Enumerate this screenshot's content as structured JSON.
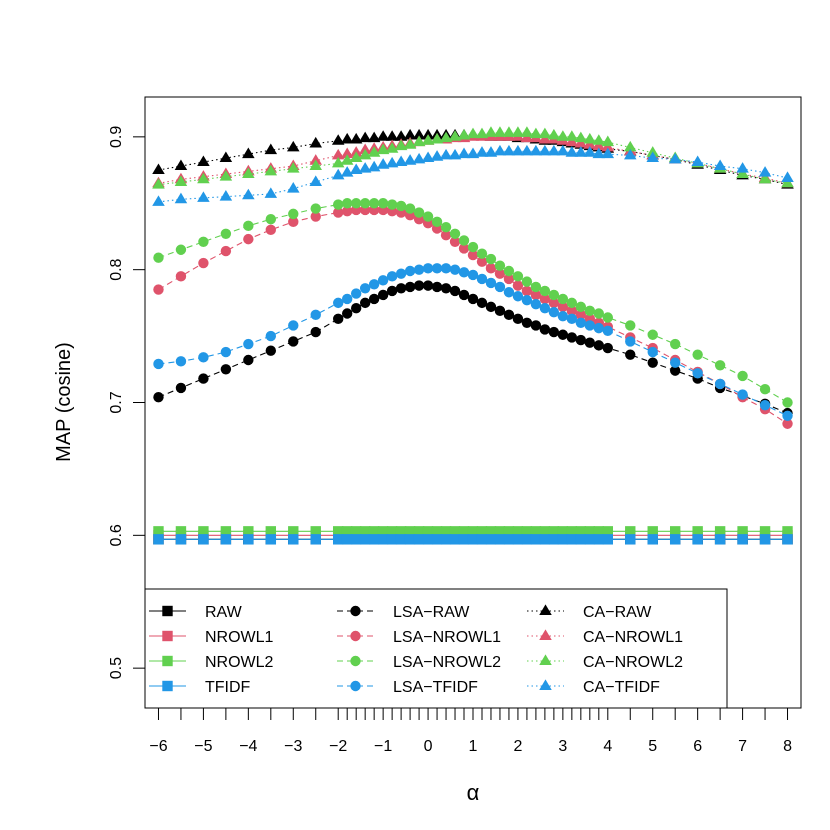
{
  "chart_data": {
    "type": "line",
    "title": "",
    "xlabel": "α",
    "ylabel": "MAP (cosine)",
    "xlim": [
      -6.3,
      8.3
    ],
    "ylim": [
      0.47,
      0.93
    ],
    "x_ticks": [
      -6,
      -5,
      -4,
      -3,
      -2,
      -1,
      0,
      1,
      2,
      3,
      4,
      5,
      6,
      7,
      8
    ],
    "x_tick_labels": [
      "-6",
      "-5",
      "-4",
      "-3",
      "-2",
      "-1",
      "0",
      "1",
      "2",
      "3",
      "4",
      "5",
      "6",
      "7",
      "8"
    ],
    "y_ticks": [
      0.5,
      0.6,
      0.7,
      0.8,
      0.9
    ],
    "y_tick_labels": [
      "0.5",
      "0.6",
      "0.7",
      "0.8",
      "0.9"
    ],
    "grid": false,
    "legend_position": "bottom-left",
    "colors": {
      "black": "#000000",
      "red": "#DF536B",
      "green": "#61D04F",
      "blue": "#2297E6"
    },
    "x": [
      -6,
      -5.5,
      -5,
      -4.5,
      -4,
      -3.5,
      -3,
      -2.5,
      -2,
      -1.8,
      -1.6,
      -1.4,
      -1.2,
      -1,
      -0.8,
      -0.6,
      -0.4,
      -0.2,
      0,
      0.2,
      0.4,
      0.6,
      0.8,
      1,
      1.2,
      1.4,
      1.6,
      1.8,
      2,
      2.2,
      2.4,
      2.6,
      2.8,
      3,
      3.2,
      3.4,
      3.6,
      3.8,
      4,
      4.5,
      5,
      5.5,
      6,
      6.5,
      7,
      7.5,
      8
    ],
    "series": [
      {
        "name": "RAW",
        "color": "#000000",
        "line": "solid",
        "marker": "square",
        "constant": 0.597
      },
      {
        "name": "NROWL1",
        "color": "#DF536B",
        "line": "solid",
        "marker": "square",
        "constant": 0.6
      },
      {
        "name": "NROWL2",
        "color": "#61D04F",
        "line": "solid",
        "marker": "square",
        "constant": 0.603
      },
      {
        "name": "TFIDF",
        "color": "#2297E6",
        "line": "solid",
        "marker": "square",
        "constant": 0.597
      },
      {
        "name": "LSA−RAW",
        "color": "#000000",
        "line": "dashed",
        "marker": "circle",
        "values": [
          0.704,
          0.711,
          0.718,
          0.725,
          0.732,
          0.739,
          0.746,
          0.753,
          0.763,
          0.767,
          0.771,
          0.775,
          0.778,
          0.781,
          0.784,
          0.786,
          0.787,
          0.788,
          0.788,
          0.787,
          0.786,
          0.784,
          0.781,
          0.778,
          0.775,
          0.772,
          0.769,
          0.766,
          0.763,
          0.76,
          0.758,
          0.755,
          0.753,
          0.751,
          0.749,
          0.747,
          0.745,
          0.743,
          0.741,
          0.736,
          0.73,
          0.724,
          0.718,
          0.711,
          0.705,
          0.699,
          0.692
        ]
      },
      {
        "name": "LSA−NROWL1",
        "color": "#DF536B",
        "line": "dashed",
        "marker": "circle",
        "values": [
          0.785,
          0.795,
          0.805,
          0.814,
          0.823,
          0.83,
          0.836,
          0.84,
          0.843,
          0.844,
          0.845,
          0.845,
          0.845,
          0.845,
          0.844,
          0.843,
          0.841,
          0.838,
          0.835,
          0.831,
          0.826,
          0.821,
          0.816,
          0.811,
          0.806,
          0.801,
          0.797,
          0.793,
          0.788,
          0.784,
          0.781,
          0.778,
          0.775,
          0.772,
          0.769,
          0.766,
          0.763,
          0.76,
          0.757,
          0.749,
          0.741,
          0.732,
          0.723,
          0.714,
          0.704,
          0.695,
          0.684
        ]
      },
      {
        "name": "LSA−NROWL2",
        "color": "#61D04F",
        "line": "dashed",
        "marker": "circle",
        "values": [
          0.809,
          0.815,
          0.821,
          0.827,
          0.833,
          0.838,
          0.842,
          0.846,
          0.849,
          0.85,
          0.85,
          0.85,
          0.85,
          0.85,
          0.849,
          0.848,
          0.846,
          0.843,
          0.84,
          0.836,
          0.832,
          0.827,
          0.822,
          0.817,
          0.812,
          0.808,
          0.803,
          0.799,
          0.795,
          0.791,
          0.787,
          0.784,
          0.781,
          0.778,
          0.775,
          0.772,
          0.769,
          0.767,
          0.764,
          0.758,
          0.751,
          0.744,
          0.736,
          0.728,
          0.72,
          0.71,
          0.7
        ]
      },
      {
        "name": "LSA−TFIDF",
        "color": "#2297E6",
        "line": "dashed",
        "marker": "circle",
        "values": [
          0.729,
          0.731,
          0.734,
          0.738,
          0.744,
          0.75,
          0.758,
          0.766,
          0.775,
          0.778,
          0.782,
          0.786,
          0.789,
          0.792,
          0.795,
          0.797,
          0.799,
          0.8,
          0.801,
          0.801,
          0.801,
          0.8,
          0.798,
          0.796,
          0.793,
          0.79,
          0.787,
          0.783,
          0.78,
          0.777,
          0.774,
          0.771,
          0.768,
          0.765,
          0.763,
          0.76,
          0.758,
          0.756,
          0.754,
          0.746,
          0.738,
          0.73,
          0.722,
          0.714,
          0.706,
          0.698,
          0.69
        ]
      },
      {
        "name": "CA−RAW",
        "color": "#000000",
        "line": "dotted",
        "marker": "triangle",
        "values": [
          0.875,
          0.878,
          0.881,
          0.884,
          0.887,
          0.89,
          0.892,
          0.895,
          0.897,
          0.898,
          0.898,
          0.899,
          0.899,
          0.9,
          0.9,
          0.9,
          0.901,
          0.901,
          0.901,
          0.901,
          0.901,
          0.901,
          0.901,
          0.901,
          0.901,
          0.9,
          0.9,
          0.9,
          0.899,
          0.899,
          0.898,
          0.897,
          0.897,
          0.896,
          0.895,
          0.894,
          0.893,
          0.892,
          0.891,
          0.889,
          0.886,
          0.883,
          0.879,
          0.875,
          0.871,
          0.868,
          0.864
        ]
      },
      {
        "name": "CA−NROWL1",
        "color": "#DF536B",
        "line": "dotted",
        "marker": "triangle",
        "values": [
          0.865,
          0.868,
          0.87,
          0.872,
          0.874,
          0.876,
          0.878,
          0.882,
          0.886,
          0.887,
          0.888,
          0.89,
          0.891,
          0.892,
          0.893,
          0.894,
          0.895,
          0.896,
          0.897,
          0.898,
          0.898,
          0.899,
          0.899,
          0.9,
          0.9,
          0.9,
          0.9,
          0.9,
          0.9,
          0.899,
          0.899,
          0.898,
          0.898,
          0.897,
          0.896,
          0.895,
          0.894,
          0.893,
          0.892,
          0.889,
          0.886,
          0.883,
          0.88,
          0.876,
          0.872,
          0.869,
          0.865
        ]
      },
      {
        "name": "CA−NROWL2",
        "color": "#61D04F",
        "line": "dotted",
        "marker": "triangle",
        "values": [
          0.864,
          0.866,
          0.868,
          0.87,
          0.872,
          0.874,
          0.876,
          0.878,
          0.88,
          0.882,
          0.884,
          0.886,
          0.888,
          0.89,
          0.891,
          0.893,
          0.894,
          0.896,
          0.897,
          0.898,
          0.899,
          0.9,
          0.901,
          0.902,
          0.902,
          0.903,
          0.903,
          0.903,
          0.903,
          0.903,
          0.902,
          0.902,
          0.901,
          0.9,
          0.9,
          0.899,
          0.898,
          0.897,
          0.896,
          0.892,
          0.888,
          0.884,
          0.88,
          0.876,
          0.872,
          0.868,
          0.865
        ]
      },
      {
        "name": "CA−TFIDF",
        "color": "#2297E6",
        "line": "dotted",
        "marker": "triangle",
        "values": [
          0.851,
          0.853,
          0.854,
          0.855,
          0.856,
          0.857,
          0.861,
          0.866,
          0.871,
          0.873,
          0.875,
          0.876,
          0.877,
          0.879,
          0.88,
          0.881,
          0.882,
          0.883,
          0.884,
          0.885,
          0.886,
          0.886,
          0.887,
          0.887,
          0.888,
          0.888,
          0.889,
          0.889,
          0.889,
          0.889,
          0.889,
          0.889,
          0.889,
          0.889,
          0.888,
          0.888,
          0.888,
          0.887,
          0.887,
          0.886,
          0.884,
          0.883,
          0.881,
          0.878,
          0.876,
          0.873,
          0.869
        ]
      }
    ],
    "legend": {
      "columns": [
        [
          "RAW",
          "NROWL1",
          "NROWL2",
          "TFIDF"
        ],
        [
          "LSA−RAW",
          "LSA−NROWL1",
          "LSA−NROWL2",
          "LSA−TFIDF"
        ],
        [
          "CA−RAW",
          "CA−NROWL1",
          "CA−NROWL2",
          "CA−TFIDF"
        ]
      ]
    }
  }
}
